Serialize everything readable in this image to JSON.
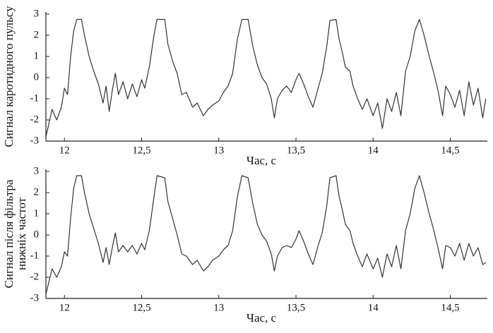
{
  "chart_data": [
    {
      "type": "line",
      "xlabel": "Час, с",
      "ylabel": [
        "Сигнал каротидного пульсу"
      ],
      "xlim": [
        11.88,
        14.74
      ],
      "ylim": [
        -3,
        3.1
      ],
      "xticks": [
        12,
        {
          "value": 12.5,
          "label": "12,5"
        },
        13,
        {
          "value": 13.5,
          "label": "13,5"
        },
        14,
        {
          "value": 14.5,
          "label": "14,5"
        }
      ],
      "yticks": [
        3,
        2,
        1,
        0,
        -1,
        -2,
        -3
      ],
      "x": [
        11.88,
        11.92,
        11.95,
        11.98,
        12.0,
        12.02,
        12.04,
        12.06,
        12.08,
        12.11,
        12.13,
        12.16,
        12.19,
        12.22,
        12.25,
        12.27,
        12.29,
        12.31,
        12.33,
        12.35,
        12.38,
        12.41,
        12.44,
        12.47,
        12.5,
        12.52,
        12.55,
        12.58,
        12.6,
        12.65,
        12.67,
        12.7,
        12.73,
        12.76,
        12.79,
        12.83,
        12.86,
        12.9,
        12.93,
        12.96,
        13.0,
        13.03,
        13.06,
        13.09,
        13.12,
        13.15,
        13.19,
        13.22,
        13.25,
        13.28,
        13.31,
        13.34,
        13.36,
        13.38,
        13.41,
        13.44,
        13.47,
        13.5,
        13.52,
        13.55,
        13.58,
        13.61,
        13.64,
        13.67,
        13.7,
        13.72,
        13.76,
        13.78,
        13.8,
        13.82,
        13.85,
        13.87,
        13.9,
        13.93,
        13.96,
        14.0,
        14.03,
        14.06,
        14.09,
        14.12,
        14.15,
        14.18,
        14.21,
        14.24,
        14.27,
        14.3,
        14.33,
        14.36,
        14.39,
        14.42,
        14.45,
        14.47,
        14.5,
        14.53,
        14.56,
        14.59,
        14.62,
        14.65,
        14.68,
        14.71,
        14.73
      ],
      "values": [
        -2.8,
        -1.5,
        -2.0,
        -1.4,
        -0.5,
        -0.8,
        1.0,
        2.2,
        2.75,
        2.75,
        2.0,
        1.0,
        0.3,
        -0.3,
        -1.2,
        -0.4,
        -1.6,
        -0.6,
        0.2,
        -0.8,
        -0.2,
        -1.0,
        -0.3,
        -0.9,
        -0.1,
        -0.5,
        0.5,
        2.0,
        2.75,
        2.75,
        1.6,
        0.8,
        0.2,
        -0.8,
        -0.7,
        -1.4,
        -1.2,
        -1.8,
        -1.5,
        -1.3,
        -1.1,
        -0.7,
        -0.4,
        0.2,
        1.8,
        2.75,
        2.75,
        1.5,
        0.6,
        0.0,
        -0.3,
        -1.0,
        -1.9,
        -1.0,
        -0.6,
        -0.4,
        -0.7,
        -0.1,
        0.2,
        -0.3,
        -0.9,
        -1.4,
        -0.6,
        0.2,
        1.5,
        2.7,
        2.75,
        1.8,
        1.2,
        0.5,
        0.3,
        -0.4,
        -1.0,
        -1.5,
        -1.0,
        -1.8,
        -1.2,
        -2.4,
        -1.0,
        -1.6,
        -0.7,
        -1.8,
        0.3,
        1.0,
        2.2,
        2.75,
        2.0,
        1.1,
        0.3,
        -0.6,
        -1.8,
        -0.4,
        -0.8,
        -1.4,
        -0.6,
        -1.8,
        -0.2,
        -1.3,
        -0.5,
        -1.9,
        -1.0
      ]
    },
    {
      "type": "line",
      "xlabel": "Час, с",
      "ylabel": [
        "Сигнал після фільтра",
        "нижніх частот"
      ],
      "xlim": [
        11.88,
        14.74
      ],
      "ylim": [
        -3,
        3.1
      ],
      "xticks": [
        12,
        {
          "value": 12.5,
          "label": "12,5"
        },
        13,
        {
          "value": 13.5,
          "label": "13,5"
        },
        14,
        {
          "value": 14.5,
          "label": "14,5"
        }
      ],
      "yticks": [
        3,
        2,
        1,
        0,
        -1,
        -2,
        -3
      ],
      "x": [
        11.88,
        11.92,
        11.95,
        11.98,
        12.0,
        12.02,
        12.04,
        12.06,
        12.08,
        12.11,
        12.13,
        12.16,
        12.19,
        12.22,
        12.25,
        12.27,
        12.29,
        12.31,
        12.33,
        12.35,
        12.38,
        12.41,
        12.44,
        12.47,
        12.5,
        12.52,
        12.55,
        12.58,
        12.6,
        12.65,
        12.67,
        12.7,
        12.73,
        12.76,
        12.79,
        12.83,
        12.86,
        12.9,
        12.93,
        12.96,
        13.0,
        13.03,
        13.06,
        13.09,
        13.12,
        13.15,
        13.19,
        13.22,
        13.25,
        13.28,
        13.31,
        13.34,
        13.36,
        13.38,
        13.41,
        13.44,
        13.47,
        13.5,
        13.52,
        13.55,
        13.58,
        13.61,
        13.64,
        13.67,
        13.7,
        13.72,
        13.76,
        13.78,
        13.8,
        13.82,
        13.85,
        13.87,
        13.9,
        13.93,
        13.96,
        14.0,
        14.03,
        14.06,
        14.09,
        14.12,
        14.15,
        14.18,
        14.21,
        14.24,
        14.27,
        14.3,
        14.33,
        14.36,
        14.39,
        14.42,
        14.45,
        14.47,
        14.5,
        14.53,
        14.56,
        14.59,
        14.62,
        14.65,
        14.68,
        14.71,
        14.73
      ],
      "values": [
        -2.8,
        -1.6,
        -2.0,
        -1.5,
        -0.8,
        -1.0,
        0.8,
        2.2,
        2.8,
        2.8,
        2.0,
        1.0,
        0.3,
        -0.4,
        -1.3,
        -0.6,
        -1.4,
        -0.6,
        0.1,
        -0.8,
        -0.5,
        -0.8,
        -0.5,
        -0.9,
        -0.4,
        -0.7,
        0.2,
        1.8,
        2.8,
        2.7,
        1.6,
        0.8,
        0.0,
        -0.9,
        -1.0,
        -1.4,
        -1.2,
        -1.7,
        -1.5,
        -1.2,
        -1.0,
        -0.7,
        -0.5,
        0.2,
        1.8,
        2.8,
        2.7,
        1.5,
        0.5,
        0.0,
        -0.3,
        -0.9,
        -1.7,
        -1.0,
        -0.6,
        -0.5,
        -0.6,
        -0.2,
        0.2,
        -0.3,
        -0.9,
        -1.4,
        -0.6,
        0.1,
        1.4,
        2.7,
        2.8,
        1.8,
        1.2,
        0.5,
        0.2,
        -0.4,
        -1.0,
        -1.5,
        -0.9,
        -1.6,
        -1.1,
        -2.0,
        -0.9,
        -1.5,
        -0.5,
        -1.6,
        0.2,
        1.0,
        2.2,
        2.8,
        2.0,
        1.1,
        0.3,
        -0.6,
        -1.6,
        -0.5,
        -0.6,
        -1.0,
        -0.4,
        -1.2,
        -0.4,
        -1.0,
        -0.6,
        -1.4,
        -1.3
      ]
    }
  ]
}
